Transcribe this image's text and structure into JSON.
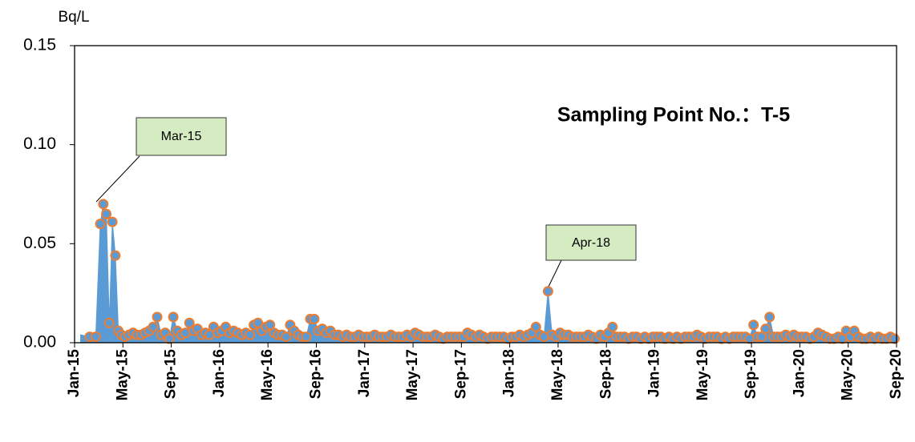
{
  "chart_data": {
    "type": "area",
    "title": "Sampling Point No.：T-5",
    "y_unit": "Bq/L",
    "annotations": [
      "Mar-15",
      "Apr-18"
    ],
    "xlim": [
      "2015-01",
      "2020-09"
    ],
    "xticks": [
      {
        "value": "2015-01",
        "label": "Jan-15"
      },
      {
        "value": "2015-05",
        "label": "May-15"
      },
      {
        "value": "2015-09",
        "label": "Sep-15"
      },
      {
        "value": "2016-01",
        "label": "Jan-16"
      },
      {
        "value": "2016-05",
        "label": "May-16"
      },
      {
        "value": "2016-09",
        "label": "Sep-16"
      },
      {
        "value": "2017-01",
        "label": "Jan-17"
      },
      {
        "value": "2017-05",
        "label": "May-17"
      },
      {
        "value": "2017-09",
        "label": "Sep-17"
      },
      {
        "value": "2018-01",
        "label": "Jan-18"
      },
      {
        "value": "2018-05",
        "label": "May-18"
      },
      {
        "value": "2018-09",
        "label": "Sep-18"
      },
      {
        "value": "2019-01",
        "label": "Jan-19"
      },
      {
        "value": "2019-05",
        "label": "May-19"
      },
      {
        "value": "2019-09",
        "label": "Sep-19"
      },
      {
        "value": "2020-01",
        "label": "Jan-20"
      },
      {
        "value": "2020-05",
        "label": "May-20"
      },
      {
        "value": "2020-09",
        "label": "Sep-20"
      }
    ],
    "ylim": [
      0,
      0.15
    ],
    "yticks": [
      {
        "value": 0,
        "label": "0.00"
      },
      {
        "value": 0.05,
        "label": "0.05"
      },
      {
        "value": 0.1,
        "label": "0.10"
      },
      {
        "value": 0.15,
        "label": "0.15"
      }
    ],
    "color": "#5b9bd5",
    "marker_edge": "#ed7d31",
    "x": [
      "2015-01",
      "2015-02",
      "2015-02",
      "2015-03",
      "2015-03",
      "2015-03",
      "2015-03",
      "2015-04",
      "2015-04",
      "2015-04",
      "2015-04",
      "2015-05",
      "2015-05",
      "2015-05",
      "2015-06",
      "2015-06",
      "2015-06",
      "2015-07",
      "2015-07",
      "2015-07",
      "2015-08",
      "2015-08",
      "2015-08",
      "2015-09",
      "2015-09",
      "2015-09",
      "2015-10",
      "2015-10",
      "2015-10",
      "2015-11",
      "2015-11",
      "2015-11",
      "2015-12",
      "2015-12",
      "2015-12",
      "2016-01",
      "2016-01",
      "2016-01",
      "2016-02",
      "2016-02",
      "2016-02",
      "2016-03",
      "2016-03",
      "2016-03",
      "2016-04",
      "2016-04",
      "2016-04",
      "2016-05",
      "2016-05",
      "2016-05",
      "2016-06",
      "2016-06",
      "2016-06",
      "2016-07",
      "2016-07",
      "2016-07",
      "2016-08",
      "2016-08",
      "2016-08",
      "2016-09",
      "2016-09",
      "2016-09",
      "2016-10",
      "2016-10",
      "2016-10",
      "2016-11",
      "2016-11",
      "2016-11",
      "2016-12",
      "2016-12",
      "2016-12",
      "2017-01",
      "2017-01",
      "2017-01",
      "2017-02",
      "2017-02",
      "2017-02",
      "2017-03",
      "2017-03",
      "2017-03",
      "2017-04",
      "2017-04",
      "2017-04",
      "2017-05",
      "2017-05",
      "2017-05",
      "2017-06",
      "2017-06",
      "2017-06",
      "2017-07",
      "2017-07",
      "2017-07",
      "2017-08",
      "2017-08",
      "2017-08",
      "2017-09",
      "2017-09",
      "2017-09",
      "2017-10",
      "2017-10",
      "2017-10",
      "2017-11",
      "2017-11",
      "2017-11",
      "2017-12",
      "2017-12",
      "2017-12",
      "2018-01",
      "2018-01",
      "2018-01",
      "2018-02",
      "2018-02",
      "2018-02",
      "2018-03",
      "2018-03",
      "2018-03",
      "2018-04",
      "2018-04",
      "2018-04",
      "2018-05",
      "2018-05",
      "2018-05",
      "2018-06",
      "2018-06",
      "2018-06",
      "2018-07",
      "2018-07",
      "2018-07",
      "2018-08",
      "2018-08",
      "2018-08",
      "2018-09",
      "2018-09",
      "2018-09",
      "2018-10",
      "2018-10",
      "2018-10",
      "2018-11",
      "2018-11",
      "2018-11",
      "2018-12",
      "2018-12",
      "2018-12",
      "2019-01",
      "2019-01",
      "2019-01",
      "2019-02",
      "2019-02",
      "2019-02",
      "2019-03",
      "2019-03",
      "2019-03",
      "2019-04",
      "2019-04",
      "2019-04",
      "2019-05",
      "2019-05",
      "2019-05",
      "2019-06",
      "2019-06",
      "2019-06",
      "2019-07",
      "2019-07",
      "2019-07",
      "2019-08",
      "2019-08",
      "2019-08",
      "2019-09",
      "2019-09",
      "2019-09",
      "2019-10",
      "2019-10",
      "2019-10",
      "2019-11",
      "2019-11",
      "2019-11",
      "2019-12",
      "2019-12",
      "2019-12",
      "2020-01",
      "2020-01",
      "2020-01",
      "2020-02",
      "2020-02",
      "2020-02",
      "2020-03",
      "2020-03",
      "2020-03",
      "2020-04",
      "2020-04",
      "2020-04",
      "2020-05",
      "2020-05",
      "2020-05",
      "2020-06",
      "2020-06",
      "2020-06",
      "2020-07",
      "2020-07",
      "2020-07",
      "2020-08",
      "2020-08",
      "2020-08"
    ],
    "values": [
      0.004,
      0.003,
      0.003,
      0.06,
      0.07,
      0.065,
      0.01,
      0.061,
      0.044,
      0.006,
      0.004,
      0.003,
      0.004,
      0.005,
      0.004,
      0.004,
      0.005,
      0.006,
      0.008,
      0.013,
      0.004,
      0.005,
      0.002,
      0.013,
      0.006,
      0.004,
      0.005,
      0.01,
      0.006,
      0.007,
      0.004,
      0.005,
      0.004,
      0.008,
      0.005,
      0.006,
      0.008,
      0.005,
      0.006,
      0.005,
      0.004,
      0.005,
      0.004,
      0.009,
      0.01,
      0.006,
      0.008,
      0.009,
      0.005,
      0.004,
      0.004,
      0.003,
      0.009,
      0.006,
      0.004,
      0.003,
      0.003,
      0.012,
      0.012,
      0.006,
      0.007,
      0.005,
      0.006,
      0.004,
      0.004,
      0.003,
      0.004,
      0.003,
      0.003,
      0.004,
      0.003,
      0.003,
      0.003,
      0.004,
      0.003,
      0.003,
      0.003,
      0.004,
      0.003,
      0.003,
      0.003,
      0.004,
      0.003,
      0.005,
      0.004,
      0.003,
      0.003,
      0.003,
      0.004,
      0.003,
      0.002,
      0.003,
      0.003,
      0.003,
      0.003,
      0.003,
      0.005,
      0.004,
      0.003,
      0.004,
      0.003,
      0.002,
      0.003,
      0.003,
      0.003,
      0.003,
      0.002,
      0.003,
      0.003,
      0.004,
      0.003,
      0.004,
      0.005,
      0.008,
      0.004,
      0.003,
      0.026,
      0.004,
      0.003,
      0.005,
      0.004,
      0.004,
      0.003,
      0.003,
      0.003,
      0.003,
      0.004,
      0.003,
      0.002,
      0.004,
      0.003,
      0.005,
      0.008,
      0.003,
      0.003,
      0.003,
      0.002,
      0.003,
      0.003,
      0.002,
      0.003,
      0.002,
      0.003,
      0.003,
      0.003,
      0.002,
      0.003,
      0.002,
      0.003,
      0.002,
      0.003,
      0.003,
      0.003,
      0.004,
      0.003,
      0.002,
      0.003,
      0.003,
      0.003,
      0.002,
      0.003,
      0.002,
      0.003,
      0.003,
      0.003,
      0.003,
      0.002,
      0.009,
      0.003,
      0.003,
      0.007,
      0.013,
      0.003,
      0.003,
      0.003,
      0.004,
      0.003,
      0.004,
      0.003,
      0.003,
      0.003,
      0.002,
      0.003,
      0.005,
      0.004,
      0.003,
      0.002,
      0.002,
      0.003,
      0.002,
      0.006,
      0.003,
      0.006,
      0.003,
      0.002,
      0.002,
      0.003,
      0.002,
      0.003,
      0.002,
      0.002,
      0.003,
      0.002
    ]
  }
}
